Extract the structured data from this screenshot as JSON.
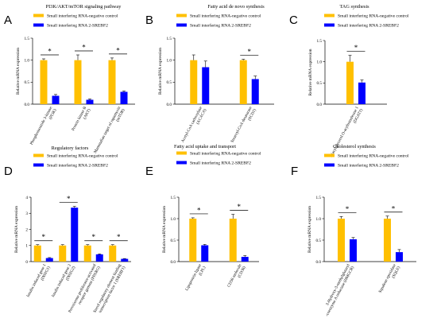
{
  "figure": {
    "colors": {
      "control": "#FFC000",
      "srebf2": "#0000FF"
    },
    "legend": {
      "control": "Small interfering RNA-negative control",
      "srebf2": "Small interfering RNA 2-SREBF2"
    },
    "sig_symbol": "*"
  },
  "chart_data": [
    {
      "letter": "A",
      "type": "bar",
      "title": "PI3K/AKT/mTOR signaling pathway",
      "ylabel": "Relative mRNA expression",
      "ylim": [
        0,
        1.5
      ],
      "yticks": [
        "0.0",
        "0.5",
        "1.0",
        "1.5"
      ],
      "categories": [
        [
          "Phosphoinositide 3-kinase",
          "(PI3K)"
        ],
        [
          "Protein kinase B",
          "(AKT)"
        ],
        [
          "Mammalian target of rapamycin",
          "(mTOR)"
        ]
      ],
      "series": [
        {
          "name": "Small interfering RNA-negative control",
          "values": [
            1.0,
            1.0,
            1.0
          ],
          "errors": [
            0.03,
            0.12,
            0.05
          ]
        },
        {
          "name": "Small interfering RNA 2-SREBF2",
          "values": [
            0.19,
            0.1,
            0.28
          ],
          "errors": [
            0.03,
            0.02,
            0.02
          ]
        }
      ],
      "significant": [
        true,
        true,
        true
      ]
    },
    {
      "letter": "B",
      "type": "bar",
      "title": "Fatty acid de novo synthesis",
      "ylabel": "Relative mRNA expression",
      "ylim": [
        0,
        1.5
      ],
      "yticks": [
        "0.0",
        "0.5",
        "1.0",
        "1.5"
      ],
      "categories": [
        [
          "Acetyl-CoA carboxylase",
          "(ACACA)"
        ],
        [
          "Stearoyl-CoA desaturase",
          "(SCD1)"
        ]
      ],
      "series": [
        {
          "name": "Small interfering RNA-negative control",
          "values": [
            1.0,
            1.0
          ],
          "errors": [
            0.12,
            0.02
          ]
        },
        {
          "name": "Small interfering RNA 2-SREBF2",
          "values": [
            0.84,
            0.57
          ],
          "errors": [
            0.14,
            0.07
          ]
        }
      ],
      "significant": [
        false,
        true
      ]
    },
    {
      "letter": "C",
      "type": "bar",
      "title": "TAG synthesis",
      "ylabel": "Relative mRNA expression",
      "ylim": [
        0,
        1.5
      ],
      "yticks": [
        "0.0",
        "0.5",
        "1.0",
        "1.5"
      ],
      "categories": [
        [
          "Diacylglycerol O-acyltransferase 1",
          "(DGAT1)"
        ]
      ],
      "series": [
        {
          "name": "Small interfering RNA-negative control",
          "values": [
            1.0
          ],
          "errors": [
            0.15
          ]
        },
        {
          "name": "Small interfering RNA 2-SREBF2",
          "values": [
            0.51
          ],
          "errors": [
            0.06
          ]
        }
      ],
      "significant": [
        true
      ]
    },
    {
      "letter": "D",
      "type": "bar",
      "title": "Regulatory factors",
      "ylabel": "Relative mRNA expression",
      "ylim": [
        0,
        4
      ],
      "yticks": [
        "0",
        "1",
        "2",
        "3",
        "4"
      ],
      "categories": [
        [
          "Insulin induced gene 1",
          "(INSIG1)"
        ],
        [
          "Insulin induced gene 2",
          "(INSIG2)"
        ],
        [
          "Peroxisome proliferator-activated",
          "receptor gamma (PPARG)"
        ],
        [
          "Sterol regulatory element binding",
          "transcription factor 1 (SREBF1)"
        ]
      ],
      "series": [
        {
          "name": "Small interfering RNA-negative control",
          "values": [
            1.0,
            1.0,
            1.0,
            1.0
          ],
          "errors": [
            0.05,
            0.05,
            0.05,
            0.05
          ]
        },
        {
          "name": "Small interfering RNA 2-SREBF2",
          "values": [
            0.22,
            3.35,
            0.45,
            0.17
          ],
          "errors": [
            0.03,
            0.08,
            0.03,
            0.02
          ]
        }
      ],
      "significant": [
        true,
        true,
        true,
        true
      ]
    },
    {
      "letter": "E",
      "type": "bar",
      "title": "Fatty acid uptake and transport",
      "ylabel": "Relative mRNA expression",
      "ylim": [
        0,
        1.5
      ],
      "yticks": [
        "0.0",
        "0.5",
        "1.0",
        "1.5"
      ],
      "categories": [
        [
          "Lipoprotein lipase",
          "(LPL)"
        ],
        [
          "CD36 molecule",
          "(CD36)"
        ]
      ],
      "series": [
        {
          "name": "Small interfering RNA-negative control",
          "values": [
            1.0,
            1.0
          ],
          "errors": [
            0.02,
            0.1
          ]
        },
        {
          "name": "Small interfering RNA 2-SREBF2",
          "values": [
            0.38,
            0.11
          ],
          "errors": [
            0.02,
            0.03
          ]
        }
      ],
      "significant": [
        true,
        true
      ]
    },
    {
      "letter": "F",
      "type": "bar",
      "title": "Cholesterol synthesis",
      "ylabel": "Relative mRNA expression",
      "ylim": [
        0,
        1.5
      ],
      "yticks": [
        "0.0",
        "0.5",
        "1.0",
        "1.5"
      ],
      "categories": [
        [
          "3-Hydroxy-3-methylglutaryl",
          "-coenzyme A reductase (HMGCR)"
        ],
        [
          "Squalene epoxidase",
          "(SQLE)"
        ]
      ],
      "series": [
        {
          "name": "Small interfering RNA-negative control",
          "values": [
            1.0,
            1.0
          ],
          "errors": [
            0.05,
            0.06
          ]
        },
        {
          "name": "Small interfering RNA 2-SREBF2",
          "values": [
            0.52,
            0.22
          ],
          "errors": [
            0.04,
            0.06
          ]
        }
      ],
      "significant": [
        true,
        true
      ]
    }
  ]
}
